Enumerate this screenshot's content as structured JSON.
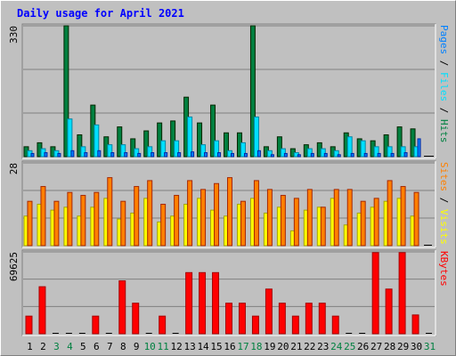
{
  "title": "Daily usage for April 2021",
  "colors": {
    "background": "#c0c0c0",
    "title": "#0000ff",
    "hits": "#008040",
    "files": "#00e0ff",
    "pages": "#0080ff",
    "visits": "#ffff00",
    "sites": "#ff8000",
    "kbytes": "#ff0000",
    "weekend_label": "#008040",
    "weekday_label": "#000000"
  },
  "chart_data": [
    {
      "type": "bar",
      "panel": "hits-files-pages",
      "ymax_label": "330",
      "ylim": [
        0,
        330
      ],
      "grid": true,
      "right_label": {
        "pages": "Pages",
        "sep1": " / ",
        "files": "Files",
        "sep2": " / ",
        "hits": "Hits"
      },
      "categories": [
        "1",
        "2",
        "3",
        "4",
        "5",
        "6",
        "7",
        "8",
        "9",
        "10",
        "11",
        "12",
        "13",
        "14",
        "15",
        "16",
        "17",
        "18",
        "19",
        "20",
        "21",
        "22",
        "23",
        "24",
        "25",
        "26",
        "27",
        "28",
        "29",
        "30",
        "31"
      ],
      "series": [
        {
          "name": "Hits",
          "values": [
            25,
            35,
            25,
            330,
            55,
            130,
            50,
            75,
            45,
            65,
            85,
            90,
            150,
            85,
            130,
            60,
            60,
            330,
            25,
            50,
            20,
            30,
            35,
            25,
            60,
            45,
            40,
            55,
            75,
            70,
            0
          ]
        },
        {
          "name": "Files",
          "values": [
            15,
            20,
            15,
            95,
            25,
            80,
            30,
            30,
            20,
            25,
            40,
            40,
            100,
            30,
            40,
            15,
            35,
            100,
            15,
            20,
            10,
            20,
            20,
            15,
            50,
            40,
            25,
            25,
            25,
            25,
            0
          ]
        },
        {
          "name": "Pages",
          "values": [
            8,
            10,
            8,
            15,
            10,
            15,
            10,
            10,
            8,
            10,
            10,
            10,
            12,
            10,
            10,
            8,
            8,
            15,
            5,
            8,
            5,
            8,
            8,
            5,
            8,
            8,
            8,
            8,
            10,
            45,
            0
          ]
        }
      ]
    },
    {
      "type": "bar",
      "panel": "visits-sites",
      "ymax_label": "28",
      "ylim": [
        0,
        28
      ],
      "grid": true,
      "right_label": {
        "sites": "Sites",
        "sep": " / ",
        "visits": "Visits"
      },
      "categories": [
        "1",
        "2",
        "3",
        "4",
        "5",
        "6",
        "7",
        "8",
        "9",
        "10",
        "11",
        "12",
        "13",
        "14",
        "15",
        "16",
        "17",
        "18",
        "19",
        "20",
        "21",
        "22",
        "23",
        "24",
        "25",
        "26",
        "27",
        "28",
        "29",
        "30",
        "31"
      ],
      "series": [
        {
          "name": "Visits",
          "values": [
            10,
            14,
            12,
            13,
            10,
            13,
            16,
            9,
            11,
            16,
            8,
            10,
            14,
            16,
            12,
            10,
            14,
            16,
            11,
            13,
            5,
            12,
            13,
            16,
            7,
            11,
            13,
            15,
            16,
            10,
            0
          ]
        },
        {
          "name": "Sites",
          "values": [
            15,
            20,
            15,
            18,
            17,
            18,
            23,
            15,
            20,
            22,
            14,
            17,
            22,
            19,
            21,
            23,
            15,
            22,
            19,
            17,
            16,
            19,
            13,
            19,
            19,
            15,
            16,
            22,
            20,
            18,
            0
          ]
        }
      ]
    },
    {
      "type": "bar",
      "panel": "kbytes",
      "ymax_label": "69625",
      "ylim": [
        0,
        69625
      ],
      "grid": true,
      "right_label": {
        "kbytes": "KBytes"
      },
      "categories": [
        "1",
        "2",
        "3",
        "4",
        "5",
        "6",
        "7",
        "8",
        "9",
        "10",
        "11",
        "12",
        "13",
        "14",
        "15",
        "16",
        "17",
        "18",
        "19",
        "20",
        "21",
        "22",
        "23",
        "24",
        "25",
        "26",
        "27",
        "28",
        "29",
        "30",
        "31"
      ],
      "series": [
        {
          "name": "KBytes",
          "values": [
            15000,
            40000,
            0,
            0,
            0,
            15000,
            0,
            45000,
            26000,
            0,
            15000,
            0,
            52000,
            52000,
            52000,
            26000,
            26000,
            15000,
            38000,
            26000,
            15000,
            26000,
            26000,
            15000,
            0,
            0,
            69000,
            38000,
            69000,
            16000,
            0
          ]
        }
      ]
    }
  ],
  "x_labels": [
    "1",
    "2",
    "3",
    "4",
    "5",
    "6",
    "7",
    "8",
    "9",
    "10",
    "11",
    "12",
    "13",
    "14",
    "15",
    "16",
    "17",
    "18",
    "19",
    "20",
    "21",
    "22",
    "23",
    "24",
    "25",
    "26",
    "27",
    "28",
    "29",
    "30",
    "31"
  ],
  "weekend_days": [
    "3",
    "4",
    "10",
    "11",
    "17",
    "18",
    "24",
    "25",
    "31"
  ]
}
